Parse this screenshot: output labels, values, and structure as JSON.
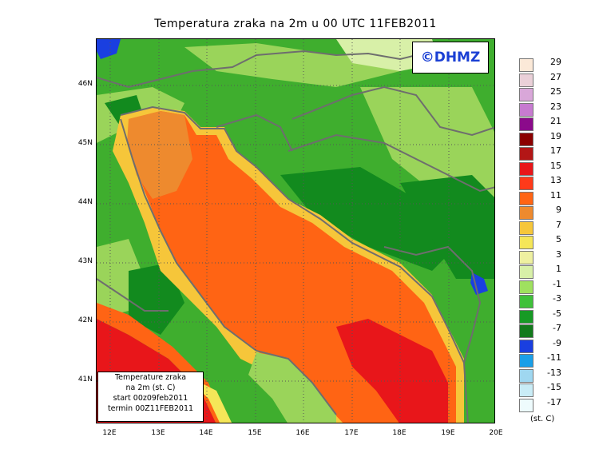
{
  "title": "Temperatura zraka na 2m u 00 UTC 11FEB2011",
  "logo": "©DHMZ",
  "infobox": {
    "line1": "Temperature zraka",
    "line2": "na 2m (st. C)",
    "line3": "start 00z09feb2011",
    "line4": "termin 00Z11FEB2011"
  },
  "y_ticks": [
    "46N",
    "45N",
    "44N",
    "43N",
    "42N",
    "41N"
  ],
  "x_ticks": [
    "12E",
    "13E",
    "14E",
    "15E",
    "16E",
    "17E",
    "18E",
    "19E",
    "20E"
  ],
  "legend": {
    "unit": "(st. C)",
    "labels": [
      "29",
      "27",
      "25",
      "23",
      "21",
      "19",
      "17",
      "15",
      "13",
      "11",
      "9",
      "7",
      "5",
      "3",
      "1",
      "-1",
      "-3",
      "-5",
      "-7",
      "-9",
      "-11",
      "-13",
      "-15",
      "-17"
    ],
    "colors": [
      "#fbe9d8",
      "#ead0d8",
      "#d9a7d9",
      "#c77bd0",
      "#8b0a8b",
      "#8b0000",
      "#b31616",
      "#e8161a",
      "#ff3a1a",
      "#ff6414",
      "#ee8a2e",
      "#f6c63a",
      "#f5e658",
      "#eef0a0",
      "#d8f0a8",
      "#9fe15f",
      "#3fc13a",
      "#179a25",
      "#127a1b",
      "#1a3fe0",
      "#1a9fe8",
      "#9fd7f0",
      "#c9ecf6",
      "#eefbfd"
    ]
  },
  "map": {
    "colors": {
      "land": "#3fae2e",
      "lowland": "#9ad45a",
      "mountain": "#128a1e",
      "sea_warm": "#ff6414",
      "sea_hot": "#e8161a",
      "coast_warm": "#ee8a2e",
      "coast_mild": "#f5e658",
      "border": "#6e6e6e",
      "cold": "#1a3fe0"
    }
  }
}
